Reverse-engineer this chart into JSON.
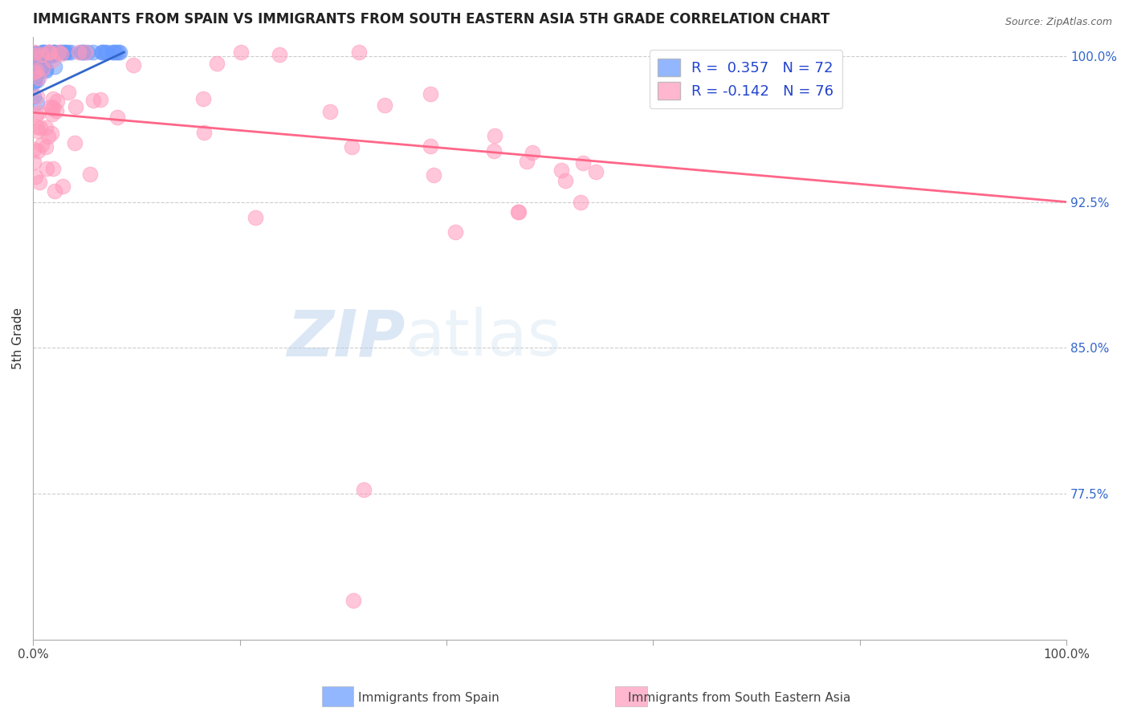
{
  "title": "IMMIGRANTS FROM SPAIN VS IMMIGRANTS FROM SOUTH EASTERN ASIA 5TH GRADE CORRELATION CHART",
  "source": "Source: ZipAtlas.com",
  "ylabel": "5th Grade",
  "right_ytick_labels": [
    "100.0%",
    "92.5%",
    "85.0%",
    "77.5%"
  ],
  "right_ytick_values": [
    1.0,
    0.925,
    0.85,
    0.775
  ],
  "legend_r1": "R =  0.357   N = 72",
  "legend_r2": "R = -0.142   N = 76",
  "blue_color": "#6699ff",
  "pink_color": "#ff99bb",
  "blue_line_color": "#3366cc",
  "pink_line_color": "#ff6688",
  "xlim": [
    0.0,
    1.0
  ],
  "ylim": [
    0.7,
    1.01
  ]
}
